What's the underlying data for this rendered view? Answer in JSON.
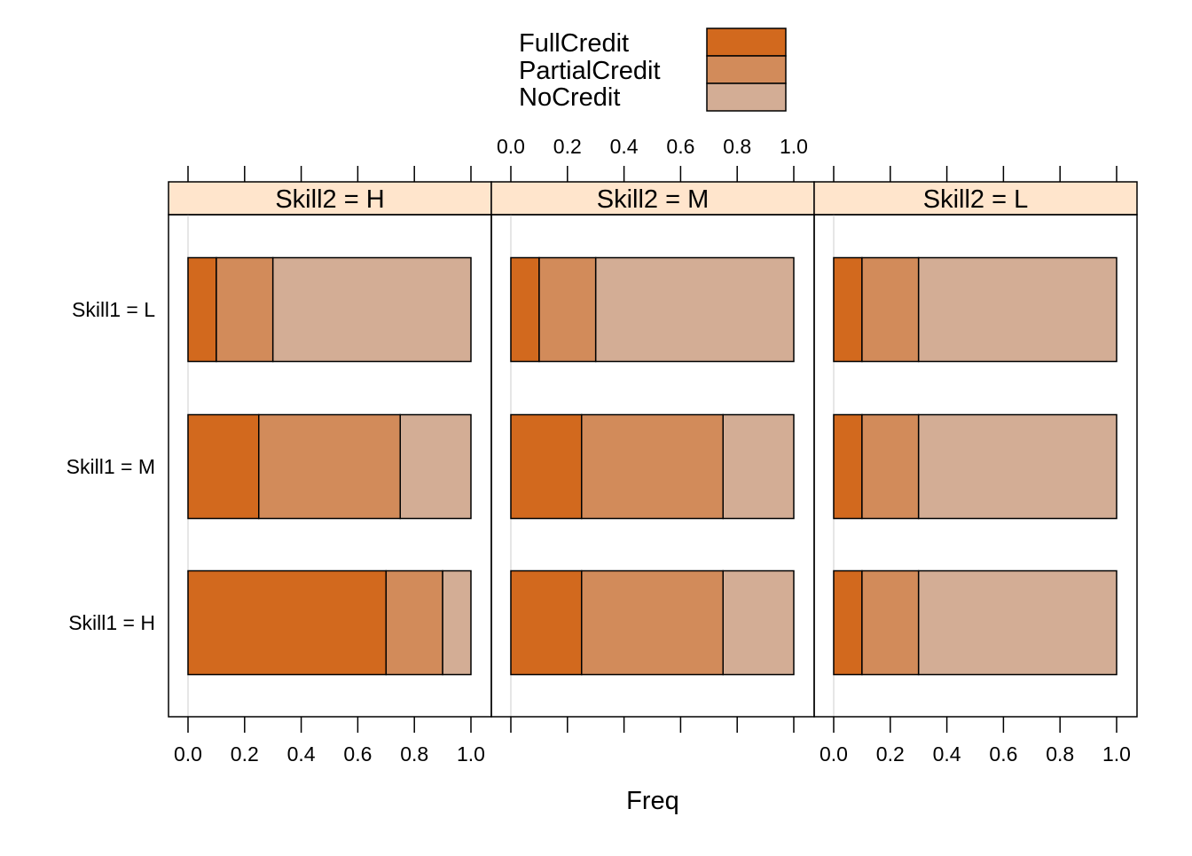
{
  "chart_data": {
    "type": "bar",
    "orientation": "horizontal",
    "stacked": true,
    "xlabel": "Freq",
    "xlim": [
      0,
      1
    ],
    "x_ticks": [
      "0.0",
      "0.2",
      "0.4",
      "0.6",
      "0.8",
      "1.0"
    ],
    "x_tick_values": [
      0,
      0.2,
      0.4,
      0.6,
      0.8,
      1.0
    ],
    "legend_position": "top",
    "row_labels": [
      "Skill1 = L",
      "Skill1 = M",
      "Skill1 = H"
    ],
    "series": [
      {
        "name": "FullCredit",
        "color": "#D2691E"
      },
      {
        "name": "PartialCredit",
        "color": "#D28B5A"
      },
      {
        "name": "NoCredit",
        "color": "#D3AD95"
      }
    ],
    "panels": [
      {
        "strip": "Skill2 = H",
        "rows": [
          {
            "row": "Skill1 = L",
            "values": [
              0.1,
              0.2,
              0.7
            ]
          },
          {
            "row": "Skill1 = M",
            "values": [
              0.25,
              0.5,
              0.25
            ]
          },
          {
            "row": "Skill1 = H",
            "values": [
              0.7,
              0.2,
              0.1
            ]
          }
        ]
      },
      {
        "strip": "Skill2 = M",
        "rows": [
          {
            "row": "Skill1 = L",
            "values": [
              0.1,
              0.2,
              0.7
            ]
          },
          {
            "row": "Skill1 = M",
            "values": [
              0.25,
              0.5,
              0.25
            ]
          },
          {
            "row": "Skill1 = H",
            "values": [
              0.25,
              0.5,
              0.25
            ]
          }
        ]
      },
      {
        "strip": "Skill2 = L",
        "rows": [
          {
            "row": "Skill1 = L",
            "values": [
              0.1,
              0.2,
              0.7
            ]
          },
          {
            "row": "Skill1 = M",
            "values": [
              0.1,
              0.2,
              0.7
            ]
          },
          {
            "row": "Skill1 = H",
            "values": [
              0.1,
              0.2,
              0.7
            ]
          }
        ]
      }
    ],
    "strip_color": "#FFE5CC",
    "reference_line_color": "#E6E6E6"
  }
}
